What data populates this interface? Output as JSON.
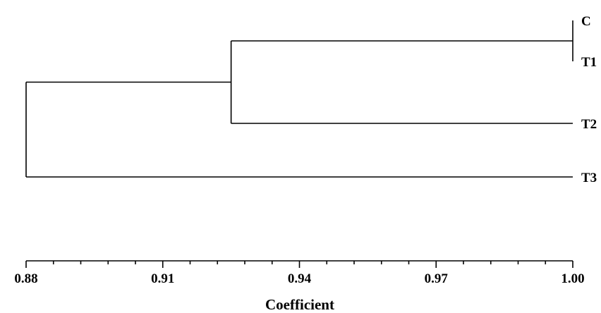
{
  "chart_data": {
    "type": "dendrogram",
    "xlabel": "Coefficient",
    "xlim": [
      0.88,
      1.0
    ],
    "ticks": [
      "0.88",
      "0.91",
      "0.94",
      "0.97",
      "1.00"
    ],
    "tick_values": [
      0.88,
      0.91,
      0.94,
      0.97,
      1.0
    ],
    "minor_ticks_per_interval": 5,
    "leaves": [
      "C",
      "T1",
      "T2",
      "T3"
    ],
    "merges": [
      {
        "children": [
          "C",
          "T1"
        ],
        "coefficient": 1.0
      },
      {
        "children": [
          "C-T1",
          "T2"
        ],
        "coefficient": 0.925
      },
      {
        "children": [
          "C-T1-T2",
          "T3"
        ],
        "coefficient": 0.88
      }
    ],
    "line_color": "#000000"
  }
}
